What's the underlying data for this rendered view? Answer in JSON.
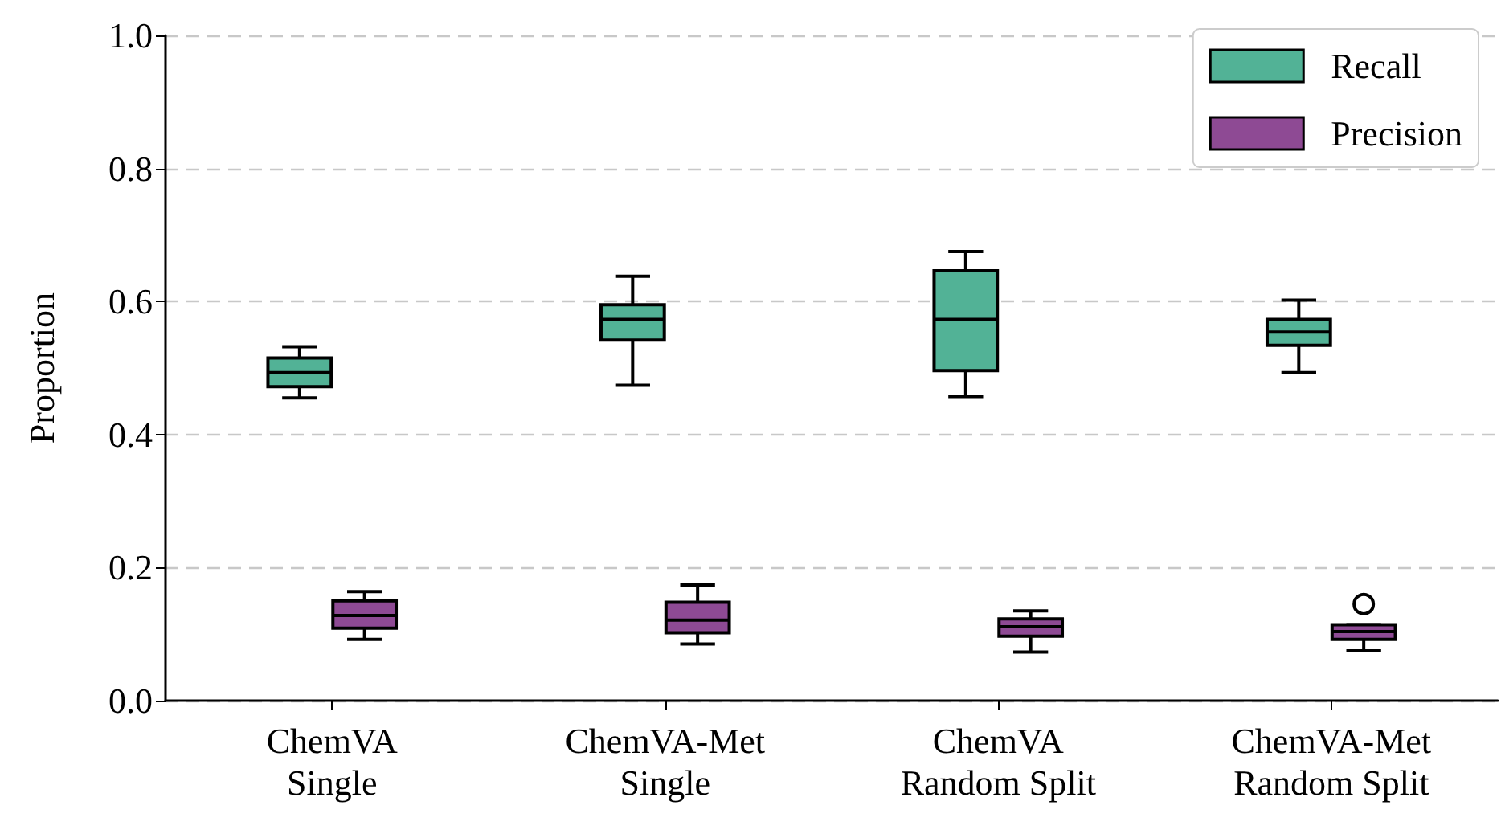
{
  "chart_data": {
    "type": "box",
    "ylabel": "Proportion",
    "categories": [
      "ChemVA\nSingle",
      "ChemVA-Met\nSingle",
      "ChemVA\nRandom Split",
      "ChemVA-Met\nRandom Split"
    ],
    "series": [
      {
        "name": "Recall",
        "color": "#52b296",
        "boxes": [
          {
            "low": 0.455,
            "q1": 0.472,
            "median": 0.493,
            "q3": 0.515,
            "high": 0.532
          },
          {
            "low": 0.474,
            "q1": 0.542,
            "median": 0.573,
            "q3": 0.595,
            "high": 0.638
          },
          {
            "low": 0.457,
            "q1": 0.496,
            "median": 0.573,
            "q3": 0.646,
            "high": 0.675
          },
          {
            "low": 0.493,
            "q1": 0.534,
            "median": 0.554,
            "q3": 0.573,
            "high": 0.602
          }
        ]
      },
      {
        "name": "Precision",
        "color": "#8e4a94",
        "boxes": [
          {
            "low": 0.092,
            "q1": 0.109,
            "median": 0.128,
            "q3": 0.15,
            "high": 0.164
          },
          {
            "low": 0.085,
            "q1": 0.102,
            "median": 0.121,
            "q3": 0.148,
            "high": 0.174
          },
          {
            "low": 0.073,
            "q1": 0.097,
            "median": 0.111,
            "q3": 0.123,
            "high": 0.135
          },
          {
            "low": 0.075,
            "q1": 0.092,
            "median": 0.104,
            "q3": 0.114,
            "high": 0.114,
            "outliers": [
              0.145
            ]
          }
        ]
      }
    ],
    "ylim": [
      0,
      1
    ],
    "yticks": [
      {
        "value": 0,
        "label": "0.0"
      },
      {
        "value": 0.2,
        "label": "0.2"
      },
      {
        "value": 0.4,
        "label": "0.4"
      },
      {
        "value": 0.6,
        "label": "0.6"
      },
      {
        "value": 0.8,
        "label": "0.8"
      },
      {
        "value": 1,
        "label": "1.0"
      }
    ],
    "grid": "y",
    "legend": "top right"
  }
}
